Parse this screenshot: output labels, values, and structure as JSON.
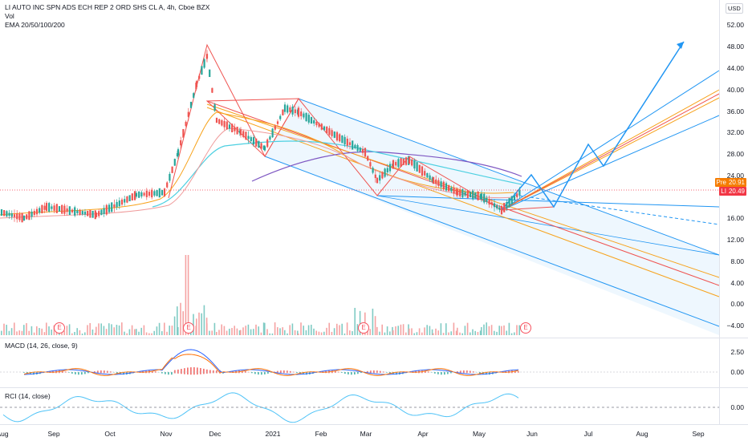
{
  "legend": {
    "title": "LI AUTO INC SPN ADS ECH REP 2 ORD SHS CL A, 4h, Cboe BZX",
    "vol": "Vol",
    "ema": "EMA 20/50/100/200",
    "macd": "MACD (14, 26, close, 9)",
    "rci": "RCI (14, close)"
  },
  "currency": "USD",
  "price_axis": [
    "52.00",
    "48.00",
    "44.00",
    "40.00",
    "36.00",
    "32.00",
    "28.00",
    "24.00",
    "16.00",
    "12.00",
    "8.00",
    "4.00",
    "0.00",
    "−4.00"
  ],
  "price_tags": {
    "pre_label": "Pre",
    "pre_value": "20.91",
    "pre_color": "#f57c00",
    "last_label": "LI",
    "last_value": "20.49",
    "last_color": "#f23645"
  },
  "macd_axis": [
    "2.50",
    "0.00"
  ],
  "rci_axis": [
    "0.00"
  ],
  "time_axis": [
    "Aug",
    "Sep",
    "Oct",
    "Nov",
    "Dec",
    "2021",
    "Feb",
    "Mar",
    "Apr",
    "May",
    "Jun",
    "Jul",
    "Aug",
    "Sep"
  ],
  "earnings_marker": "E",
  "colors": {
    "up": "#26a69a",
    "down": "#ef5350",
    "pitchfork": "#2196f3",
    "ema20": "#f7a21b",
    "ema50": "#ef9a9a",
    "ema100": "#80deea",
    "ema200": "#7e57c2"
  }
}
